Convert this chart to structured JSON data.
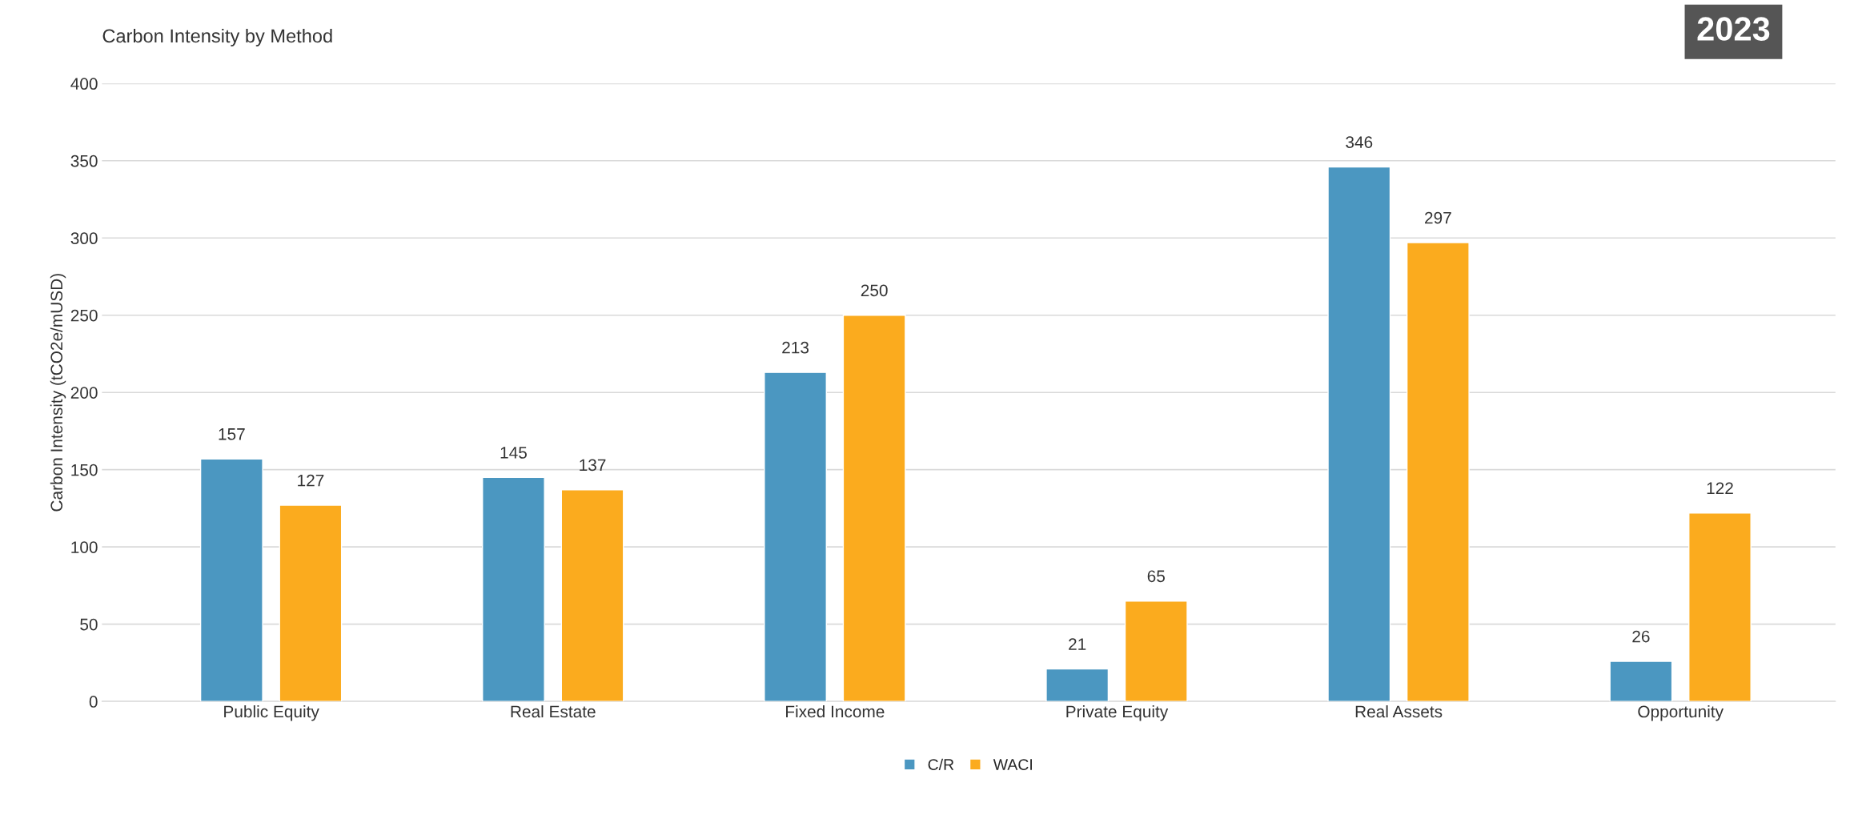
{
  "chart_data": {
    "type": "bar",
    "title": "Carbon Intensity by Method",
    "ylabel": "Carbon Intensity (tCO2e/mUSD)",
    "categories": [
      "Public Equity",
      "Real Estate",
      "Fixed Income",
      "Private Equity",
      "Real Assets",
      "Opportunity"
    ],
    "series": [
      {
        "name": "C/R",
        "color": "#4b97c1",
        "values": [
          157,
          145,
          213,
          21,
          346,
          26
        ]
      },
      {
        "name": "WACI",
        "color": "#fbab1e",
        "values": [
          127,
          137,
          250,
          65,
          297,
          122
        ]
      }
    ],
    "ylim": [
      0,
      400
    ],
    "yticks": [
      0,
      50,
      100,
      150,
      200,
      250,
      300,
      350,
      400
    ],
    "grid": "y",
    "legend": "bottom",
    "data_labels": true,
    "annotations": [
      "2023"
    ]
  }
}
